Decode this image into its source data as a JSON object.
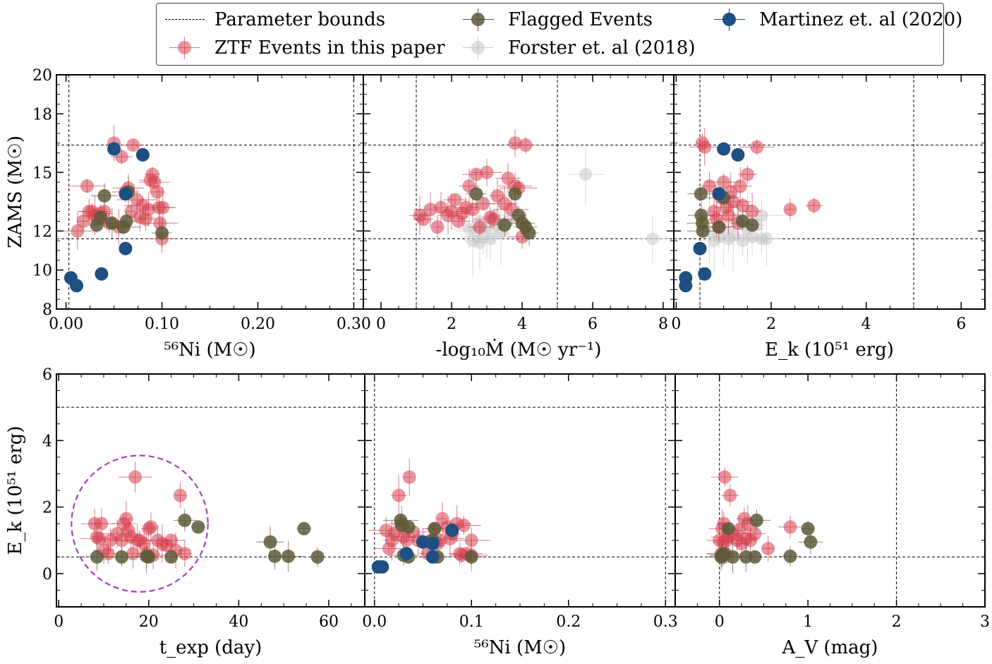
{
  "colors": {
    "ztf": "#d6404f",
    "flagged": "#5d5a3a",
    "forster": "#c8c8c8",
    "martinez": "#1f4e82",
    "circle": "#a83cc0"
  },
  "legend": {
    "bounds": "Parameter bounds",
    "ztf": "ZTF Events in this paper",
    "flagged": "Flagged Events",
    "forster": "Forster et. al (2018)",
    "martinez": "Martinez et. al (2020)"
  },
  "chart_data": [
    {
      "type": "scatter",
      "id": "zams_vs_ni",
      "xlabel": "⁵⁶Ni (M☉)",
      "ylabel": "ZAMS (M☉)",
      "xlim": [
        -0.01,
        0.31
      ],
      "ylim": [
        8,
        20
      ],
      "xticks": [
        0.0,
        0.1,
        0.2,
        0.3
      ],
      "xtick_labels": [
        "0.00",
        "0.10",
        "0.20",
        "0.30"
      ],
      "yticks": [
        8,
        10,
        12,
        15,
        18,
        20
      ],
      "ytick_labels": [
        "8",
        "10",
        "12",
        "15",
        "18",
        "20"
      ],
      "bounds_x": [
        0.003,
        0.3
      ],
      "bounds_y": [
        11.6,
        16.4
      ],
      "ztf": [
        [
          0.012,
          12.0
        ],
        [
          0.018,
          12.5
        ],
        [
          0.022,
          14.3
        ],
        [
          0.024,
          13.0
        ],
        [
          0.027,
          13.0
        ],
        [
          0.03,
          12.8
        ],
        [
          0.033,
          12.6
        ],
        [
          0.036,
          12.9
        ],
        [
          0.04,
          13.0
        ],
        [
          0.045,
          12.4
        ],
        [
          0.05,
          16.5
        ],
        [
          0.055,
          12.2
        ],
        [
          0.058,
          15.8
        ],
        [
          0.062,
          14.0
        ],
        [
          0.065,
          14.2
        ],
        [
          0.068,
          13.0
        ],
        [
          0.07,
          16.4
        ],
        [
          0.074,
          13.6
        ],
        [
          0.077,
          12.7
        ],
        [
          0.08,
          13.3
        ],
        [
          0.083,
          12.6
        ],
        [
          0.086,
          13.1
        ],
        [
          0.088,
          14.6
        ],
        [
          0.09,
          14.9
        ],
        [
          0.092,
          14.5
        ],
        [
          0.095,
          14.0
        ],
        [
          0.097,
          13.2
        ],
        [
          0.098,
          12.4
        ],
        [
          0.1,
          11.6
        ],
        [
          0.101,
          13.2
        ]
      ],
      "flagged": [
        [
          0.032,
          12.3
        ],
        [
          0.036,
          12.7
        ],
        [
          0.04,
          13.8
        ],
        [
          0.048,
          12.4
        ],
        [
          0.06,
          12.2
        ],
        [
          0.063,
          12.5
        ],
        [
          0.065,
          14.0
        ],
        [
          0.1,
          11.9
        ]
      ],
      "martinez": [
        [
          0.005,
          9.6
        ],
        [
          0.011,
          9.2
        ],
        [
          0.037,
          9.8
        ],
        [
          0.05,
          16.2
        ],
        [
          0.062,
          13.9
        ],
        [
          0.062,
          11.1
        ],
        [
          0.08,
          15.9
        ]
      ],
      "forster": []
    },
    {
      "type": "scatter",
      "id": "zams_vs_mdot",
      "xlabel": "-log₁₀Ṁ (M☉ yr⁻¹)",
      "ylabel": "",
      "xlim": [
        -0.5,
        8.3
      ],
      "ylim": [
        8,
        20
      ],
      "xticks": [
        0,
        2,
        4,
        6,
        8
      ],
      "xtick_labels": [
        "0",
        "2",
        "4",
        "6",
        "8"
      ],
      "bounds_x": [
        1.0,
        5.0
      ],
      "bounds_y": [
        11.6,
        16.4
      ],
      "ztf": [
        [
          1.1,
          12.8
        ],
        [
          1.2,
          12.6
        ],
        [
          1.4,
          13.1
        ],
        [
          1.6,
          12.2
        ],
        [
          1.7,
          13.2
        ],
        [
          1.9,
          12.8
        ],
        [
          2.0,
          13.0
        ],
        [
          2.1,
          13.6
        ],
        [
          2.2,
          12.5
        ],
        [
          2.3,
          12.9
        ],
        [
          2.4,
          13.2
        ],
        [
          2.5,
          14.3
        ],
        [
          2.6,
          13.1
        ],
        [
          2.7,
          14.9
        ],
        [
          2.8,
          12.2
        ],
        [
          3.0,
          15.0
        ],
        [
          3.1,
          12.7
        ],
        [
          3.3,
          13.8
        ],
        [
          3.5,
          13.4
        ],
        [
          3.6,
          14.7
        ],
        [
          3.7,
          13.1
        ],
        [
          3.8,
          16.5
        ],
        [
          3.9,
          14.2
        ],
        [
          4.0,
          11.7
        ],
        [
          4.1,
          16.4
        ],
        [
          3.8,
          14.3
        ],
        [
          3.2,
          12.6
        ],
        [
          2.9,
          13.4
        ]
      ],
      "flagged": [
        [
          2.7,
          13.9
        ],
        [
          3.5,
          12.3
        ],
        [
          3.8,
          13.9
        ],
        [
          3.9,
          12.8
        ],
        [
          4.0,
          12.4
        ],
        [
          4.1,
          12.2
        ],
        [
          4.2,
          11.9
        ]
      ],
      "martinez": [],
      "forster": [
        [
          2.6,
          11.5
        ],
        [
          2.7,
          12.0
        ],
        [
          2.8,
          12.5
        ],
        [
          2.9,
          11.7
        ],
        [
          3.0,
          12.2
        ],
        [
          3.1,
          11.6
        ],
        [
          3.2,
          12.8
        ],
        [
          3.4,
          11.9
        ],
        [
          3.6,
          12.5
        ],
        [
          2.5,
          12.1
        ],
        [
          2.8,
          11.4
        ],
        [
          3.3,
          12.3
        ],
        [
          5.8,
          14.9
        ],
        [
          7.7,
          11.6
        ]
      ]
    },
    {
      "type": "scatter",
      "id": "zams_vs_ek",
      "xlabel": "E_k (10⁵¹ erg)",
      "ylabel": "",
      "xlim": [
        -0.05,
        6.5
      ],
      "ylim": [
        8,
        20
      ],
      "xticks": [
        0,
        2,
        4,
        6
      ],
      "xtick_labels": [
        "0",
        "2",
        "4",
        "6"
      ],
      "bounds_x": [
        0.5,
        5.0
      ],
      "bounds_y": [
        11.6,
        16.4
      ],
      "ztf": [
        [
          0.55,
          16.5
        ],
        [
          0.6,
          16.3
        ],
        [
          0.7,
          14.3
        ],
        [
          0.8,
          13.0
        ],
        [
          0.85,
          12.6
        ],
        [
          0.9,
          12.2
        ],
        [
          1.0,
          14.5
        ],
        [
          1.05,
          13.2
        ],
        [
          1.1,
          12.8
        ],
        [
          1.2,
          13.5
        ],
        [
          1.3,
          12.4
        ],
        [
          1.35,
          14.3
        ],
        [
          1.4,
          13.3
        ],
        [
          1.5,
          14.9
        ],
        [
          1.6,
          13.0
        ],
        [
          1.7,
          16.3
        ],
        [
          2.4,
          13.1
        ],
        [
          2.9,
          13.3
        ],
        [
          1.15,
          14.0
        ],
        [
          0.95,
          13.7
        ]
      ],
      "flagged": [
        [
          0.52,
          13.9
        ],
        [
          0.53,
          12.8
        ],
        [
          0.55,
          12.4
        ],
        [
          0.56,
          12.0
        ],
        [
          0.9,
          12.2
        ],
        [
          1.0,
          13.7
        ],
        [
          1.4,
          12.5
        ],
        [
          1.6,
          12.3
        ]
      ],
      "martinez": [
        [
          0.2,
          9.6
        ],
        [
          0.2,
          9.2
        ],
        [
          0.5,
          11.1
        ],
        [
          0.6,
          9.8
        ],
        [
          0.9,
          13.9
        ],
        [
          1.0,
          16.2
        ],
        [
          1.3,
          15.9
        ]
      ],
      "forster": [
        [
          0.7,
          12.0
        ],
        [
          0.8,
          11.5
        ],
        [
          0.9,
          11.7
        ],
        [
          1.0,
          12.2
        ],
        [
          1.1,
          11.6
        ],
        [
          1.2,
          11.8
        ],
        [
          1.3,
          12.6
        ],
        [
          1.4,
          11.5
        ],
        [
          1.5,
          12.1
        ],
        [
          1.6,
          11.7
        ],
        [
          1.7,
          12.3
        ],
        [
          1.8,
          11.6
        ],
        [
          1.8,
          12.8
        ],
        [
          1.9,
          11.6
        ]
      ]
    },
    {
      "type": "scatter",
      "id": "ek_vs_texp",
      "xlabel": "t_exp (day)",
      "ylabel": "E_k (10⁵¹ erg)",
      "xlim": [
        -0.5,
        68
      ],
      "ylim": [
        -1,
        6
      ],
      "xticks": [
        0,
        20,
        40,
        60
      ],
      "xtick_labels": [
        "0",
        "20",
        "40",
        "60"
      ],
      "yticks": [
        0,
        2,
        4,
        6
      ],
      "ytick_labels": [
        "0",
        "2",
        "4",
        "6"
      ],
      "bounds_x": [],
      "bounds_y": [
        0.5,
        5.0
      ],
      "circle": {
        "cx": 18,
        "cy": 1.5,
        "r": 2.05
      },
      "ztf": [
        [
          8,
          1.5
        ],
        [
          8.5,
          1.1
        ],
        [
          9,
          1.05
        ],
        [
          9.5,
          1.5
        ],
        [
          10,
          0.7
        ],
        [
          11,
          0.6
        ],
        [
          11.5,
          1.0
        ],
        [
          13,
          1.2
        ],
        [
          14,
          1.0
        ],
        [
          14.5,
          1.5
        ],
        [
          15,
          1.65
        ],
        [
          15.5,
          1.3
        ],
        [
          16,
          1.1
        ],
        [
          16.5,
          0.6
        ],
        [
          17,
          2.9
        ],
        [
          17.5,
          1.0
        ],
        [
          18,
          1.0
        ],
        [
          19,
          0.9
        ],
        [
          19.5,
          0.6
        ],
        [
          20,
          1.35
        ],
        [
          20.5,
          1.4
        ],
        [
          21,
          0.55
        ],
        [
          22,
          1.0
        ],
        [
          23,
          0.9
        ],
        [
          24,
          0.85
        ],
        [
          25,
          1.0
        ],
        [
          26,
          0.7
        ],
        [
          27,
          2.35
        ],
        [
          28,
          0.6
        ]
      ],
      "flagged": [
        [
          8.5,
          0.5
        ],
        [
          14,
          0.5
        ],
        [
          19.5,
          0.52
        ],
        [
          20,
          0.5
        ],
        [
          25,
          0.5
        ],
        [
          28,
          1.6
        ],
        [
          31,
          1.4
        ],
        [
          47,
          0.95
        ],
        [
          48,
          0.52
        ],
        [
          51,
          0.52
        ],
        [
          54.5,
          1.35
        ],
        [
          57.5,
          0.5
        ]
      ],
      "martinez": [],
      "forster": []
    },
    {
      "type": "scatter",
      "id": "ek_vs_ni",
      "xlabel": "⁵⁶Ni (M☉)",
      "ylabel": "",
      "xlim": [
        -0.01,
        0.31
      ],
      "ylim": [
        -1,
        6
      ],
      "xticks": [
        0.0,
        0.1,
        0.2,
        0.3
      ],
      "xtick_labels": [
        "0.0",
        "0.1",
        "0.2",
        "0.3"
      ],
      "bounds_x": [
        0.0,
        0.3
      ],
      "bounds_y": [
        0.5,
        5.0
      ],
      "ztf": [
        [
          0.012,
          1.3
        ],
        [
          0.015,
          0.75
        ],
        [
          0.018,
          1.0
        ],
        [
          0.02,
          1.2
        ],
        [
          0.025,
          2.35
        ],
        [
          0.028,
          1.5
        ],
        [
          0.03,
          1.1
        ],
        [
          0.033,
          1.0
        ],
        [
          0.036,
          2.9
        ],
        [
          0.04,
          1.25
        ],
        [
          0.045,
          1.0
        ],
        [
          0.05,
          0.95
        ],
        [
          0.055,
          0.6
        ],
        [
          0.058,
          1.0
        ],
        [
          0.062,
          1.35
        ],
        [
          0.065,
          0.9
        ],
        [
          0.068,
          1.0
        ],
        [
          0.07,
          1.65
        ],
        [
          0.075,
          1.4
        ],
        [
          0.078,
          1.05
        ],
        [
          0.08,
          1.2
        ],
        [
          0.085,
          1.5
        ],
        [
          0.088,
          0.6
        ],
        [
          0.09,
          0.55
        ],
        [
          0.092,
          1.45
        ],
        [
          0.095,
          0.6
        ],
        [
          0.1,
          1.0
        ],
        [
          0.1,
          0.55
        ]
      ],
      "flagged": [
        [
          0.027,
          1.6
        ],
        [
          0.028,
          1.45
        ],
        [
          0.03,
          0.55
        ],
        [
          0.035,
          0.5
        ],
        [
          0.035,
          1.4
        ],
        [
          0.06,
          1.0
        ],
        [
          0.062,
          1.35
        ],
        [
          0.065,
          0.5
        ],
        [
          0.1,
          0.5
        ]
      ],
      "martinez": [
        [
          0.004,
          0.2
        ],
        [
          0.008,
          0.2
        ],
        [
          0.033,
          0.6
        ],
        [
          0.05,
          0.95
        ],
        [
          0.06,
          0.9
        ],
        [
          0.06,
          0.5
        ],
        [
          0.08,
          1.3
        ]
      ],
      "forster": []
    },
    {
      "type": "scatter",
      "id": "ek_vs_av",
      "xlabel": "A_V (mag)",
      "ylabel": "",
      "xlim": [
        -0.5,
        3.0
      ],
      "ylim": [
        -1,
        6
      ],
      "xticks": [
        0,
        1,
        2,
        3
      ],
      "xtick_labels": [
        "0",
        "1",
        "2",
        "3"
      ],
      "bounds_x": [
        0.0,
        2.0
      ],
      "bounds_y": [
        0.5,
        5.0
      ],
      "ztf": [
        [
          0.0,
          1.0
        ],
        [
          0.02,
          0.55
        ],
        [
          0.03,
          1.35
        ],
        [
          0.04,
          0.95
        ],
        [
          0.05,
          1.5
        ],
        [
          0.06,
          2.9
        ],
        [
          0.07,
          0.6
        ],
        [
          0.08,
          1.0
        ],
        [
          0.1,
          1.1
        ],
        [
          0.12,
          2.35
        ],
        [
          0.15,
          1.2
        ],
        [
          0.2,
          1.0
        ],
        [
          0.22,
          1.3
        ],
        [
          0.25,
          0.9
        ],
        [
          0.28,
          1.65
        ],
        [
          0.3,
          1.05
        ],
        [
          0.32,
          1.5
        ],
        [
          0.35,
          1.0
        ],
        [
          0.4,
          1.2
        ],
        [
          0.55,
          0.75
        ],
        [
          0.8,
          1.4
        ],
        [
          0.02,
          0.6
        ],
        [
          0.05,
          0.5
        ]
      ],
      "flagged": [
        [
          0.02,
          0.5
        ],
        [
          0.03,
          0.55
        ],
        [
          0.05,
          0.6
        ],
        [
          0.1,
          1.35
        ],
        [
          0.15,
          0.5
        ],
        [
          0.3,
          0.5
        ],
        [
          0.4,
          0.5
        ],
        [
          0.42,
          1.6
        ],
        [
          0.8,
          0.52
        ],
        [
          1.0,
          1.35
        ],
        [
          1.03,
          0.95
        ]
      ],
      "martinez": [],
      "forster": []
    }
  ]
}
